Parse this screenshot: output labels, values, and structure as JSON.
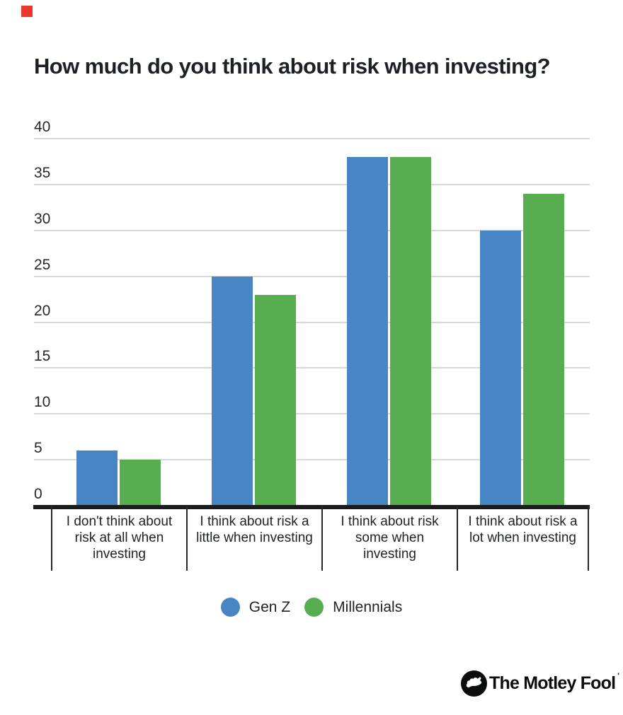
{
  "marker": {
    "color": "#e8392b"
  },
  "header": {
    "title": "How much do you think about risk when investing?"
  },
  "chart_data": {
    "type": "bar",
    "title": "How much do you think about risk when investing?",
    "categories": [
      "I don't think about risk at all when investing",
      "I think about risk a little when investing",
      "I think about risk some when investing",
      "I think about risk a lot when investing"
    ],
    "category_labels_display": [
      "I don't think about\nrisk at all when\ninvesting",
      "I think about risk a\nlittle when investing",
      "I think about risk\nsome when\ninvesting",
      "I think about risk a\nlot when investing"
    ],
    "series": [
      {
        "name": "Gen Z",
        "color": "#4785c4",
        "values": [
          6,
          25,
          38,
          30
        ]
      },
      {
        "name": "Millennials",
        "color": "#58ad51",
        "values": [
          5,
          23,
          38,
          34
        ]
      }
    ],
    "ylim": [
      0,
      40
    ],
    "yticks": [
      0,
      5,
      10,
      15,
      20,
      25,
      30,
      35,
      40
    ],
    "grid": true,
    "grid_color": "#d8d8d8",
    "legend_position": "bottom"
  },
  "legend": {
    "items": [
      {
        "label": "Gen Z",
        "color": "#4785c4"
      },
      {
        "label": "Millennials",
        "color": "#58ad51"
      }
    ]
  },
  "branding": {
    "logo_text": "The Motley Fool",
    "trademark_mark": "'"
  }
}
